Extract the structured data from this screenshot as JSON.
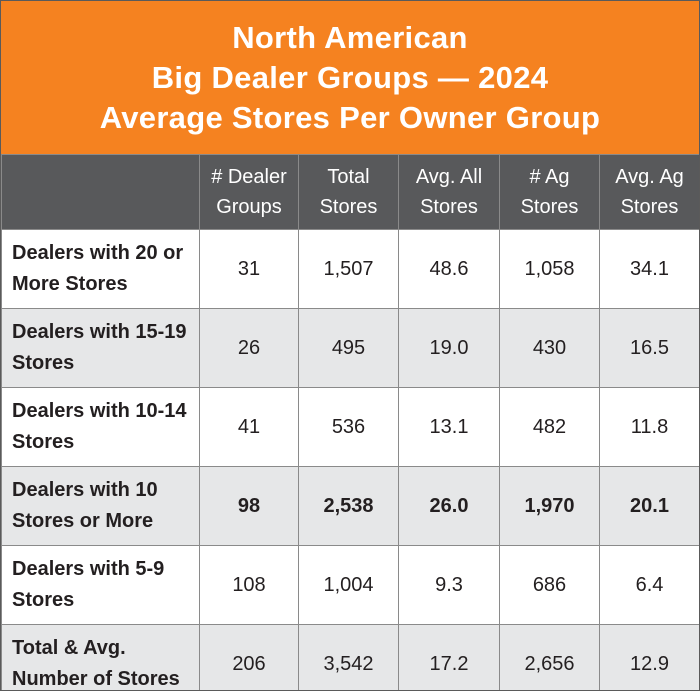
{
  "title": {
    "line1": "North American",
    "line2": "Big Dealer Groups — 2024",
    "line3": "Average Stores Per Owner Group"
  },
  "columns": [
    "",
    "# Dealer Groups",
    "Total Stores",
    "Avg. All Stores",
    "# Ag Stores",
    "Avg. Ag Stores"
  ],
  "chart_data": {
    "type": "table",
    "title": "North American Big Dealer Groups — 2024 Average Stores Per Owner Group",
    "columns": [
      "# Dealer Groups",
      "Total Stores",
      "Avg. All Stores",
      "# Ag Stores",
      "Avg. Ag Stores"
    ],
    "rows": [
      {
        "label": "Dealers with 20 or More Stores",
        "values": [
          "31",
          "1,507",
          "48.6",
          "1,058",
          "34.1"
        ],
        "bold": false
      },
      {
        "label": "Dealers with 15-19 Stores",
        "values": [
          "26",
          "495",
          "19.0",
          "430",
          "16.5"
        ],
        "bold": false
      },
      {
        "label": "Dealers with 10-14 Stores",
        "values": [
          "41",
          "536",
          "13.1",
          "482",
          "11.8"
        ],
        "bold": false
      },
      {
        "label": "Dealers with 10 Stores or More",
        "values": [
          "98",
          "2,538",
          "26.0",
          "1,970",
          "20.1"
        ],
        "bold": true
      },
      {
        "label": "Dealers with 5-9 Stores",
        "values": [
          "108",
          "1,004",
          "9.3",
          "686",
          "6.4"
        ],
        "bold": false
      },
      {
        "label": "Total & Avg. Number of Stores",
        "values": [
          "206",
          "3,542",
          "17.2",
          "2,656",
          "12.9"
        ],
        "bold": false
      }
    ]
  },
  "colors": {
    "title_background": "#f58220",
    "header_background": "#58595b",
    "row_alt_background": "#e6e7e8"
  }
}
